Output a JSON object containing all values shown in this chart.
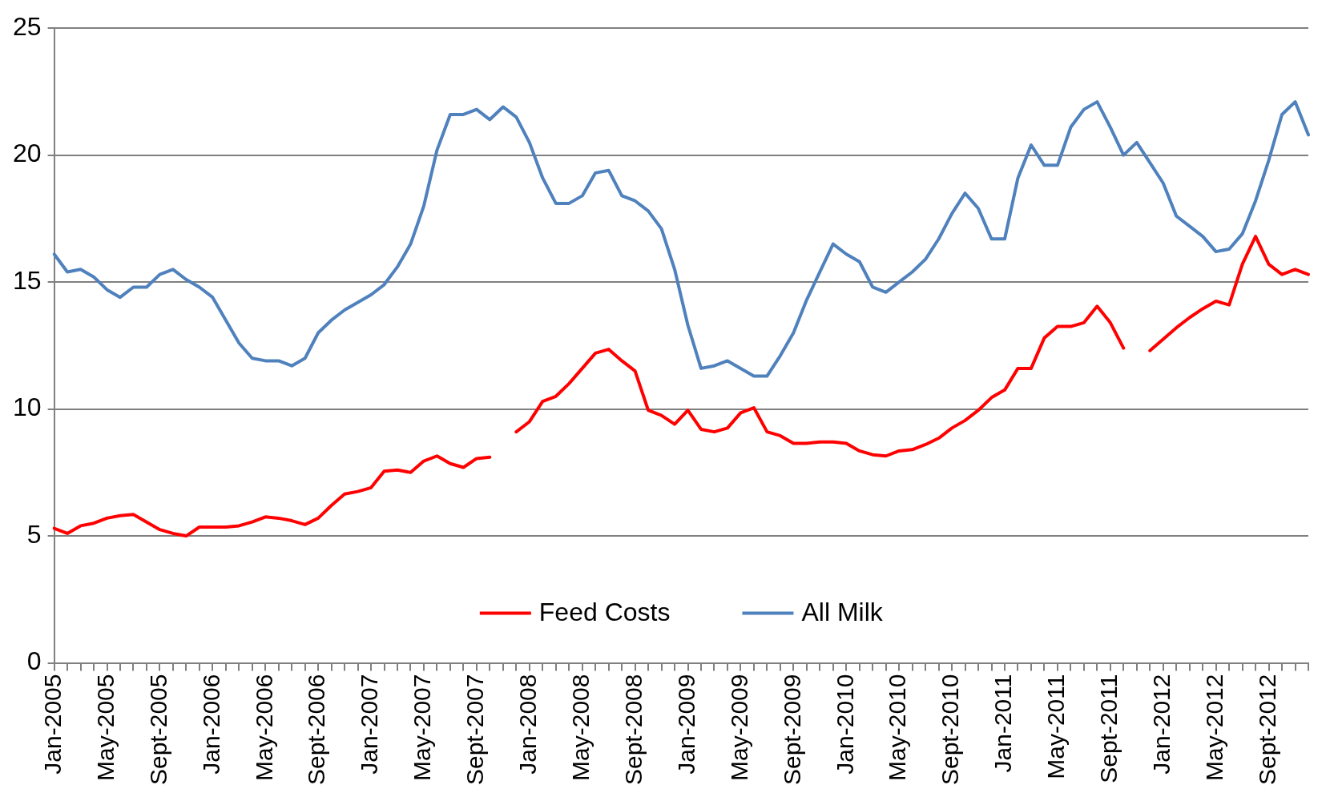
{
  "chart_data": {
    "type": "line",
    "categories": [
      "Jan-2005",
      null,
      null,
      null,
      "May-2005",
      null,
      null,
      null,
      "Sept-2005",
      null,
      null,
      null,
      "Jan-2006",
      null,
      null,
      null,
      "May-2006",
      null,
      null,
      null,
      "Sept-2006",
      null,
      null,
      null,
      "Jan-2007",
      null,
      null,
      null,
      "May-2007",
      null,
      null,
      null,
      "Sept-2007",
      null,
      null,
      null,
      "Jan-2008",
      null,
      null,
      null,
      "May-2008",
      null,
      null,
      null,
      "Sept-2008",
      null,
      null,
      null,
      "Jan-2009",
      null,
      null,
      null,
      "May-2009",
      null,
      null,
      null,
      "Sept-2009",
      null,
      null,
      null,
      "Jan-2010",
      null,
      null,
      null,
      "May-2010",
      null,
      null,
      null,
      "Sept-2010",
      null,
      null,
      null,
      "Jan-2011",
      null,
      null,
      null,
      "May-2011",
      null,
      null,
      null,
      "Sept-2011",
      null,
      null,
      null,
      "Jan-2012",
      null,
      null,
      null,
      "May-2012",
      null,
      null,
      null,
      "Sept-2012",
      null,
      null,
      null
    ],
    "series": [
      {
        "name": "Feed Costs",
        "color": "#ff0000",
        "values": [
          5.3,
          5.1,
          5.4,
          5.5,
          5.7,
          5.8,
          5.85,
          5.55,
          5.25,
          5.1,
          5.0,
          5.35,
          5.35,
          5.35,
          5.4,
          5.55,
          5.75,
          5.7,
          5.6,
          5.45,
          5.7,
          6.2,
          6.65,
          6.75,
          6.9,
          7.55,
          7.6,
          7.5,
          7.95,
          8.15,
          7.85,
          7.7,
          8.05,
          8.1,
          null,
          9.1,
          9.5,
          10.3,
          10.5,
          11.0,
          11.6,
          12.2,
          12.35,
          11.9,
          11.5,
          9.95,
          9.75,
          9.4,
          9.95,
          9.2,
          9.1,
          9.25,
          9.85,
          10.05,
          9.1,
          8.95,
          8.65,
          8.65,
          8.7,
          8.7,
          8.65,
          8.35,
          8.2,
          8.15,
          8.35,
          8.4,
          8.6,
          8.85,
          9.25,
          9.55,
          9.95,
          10.45,
          10.75,
          11.6,
          11.6,
          12.8,
          13.25,
          13.25,
          13.4,
          14.05,
          13.4,
          12.4,
          null,
          12.3,
          12.75,
          13.2,
          13.6,
          13.95,
          14.25,
          14.1,
          15.7,
          16.8,
          15.7,
          15.3,
          15.5,
          15.3
        ]
      },
      {
        "name": "All Milk",
        "color": "#4f81bd",
        "values": [
          16.1,
          15.4,
          15.5,
          15.2,
          14.7,
          14.4,
          14.8,
          14.8,
          15.3,
          15.5,
          15.1,
          14.8,
          14.4,
          13.5,
          12.6,
          12.0,
          11.9,
          11.9,
          11.7,
          12.0,
          13.0,
          13.5,
          13.9,
          14.2,
          14.5,
          14.9,
          15.6,
          16.5,
          18.0,
          20.2,
          21.6,
          21.6,
          21.8,
          21.4,
          21.9,
          21.5,
          20.5,
          19.1,
          18.1,
          18.1,
          18.4,
          19.3,
          19.4,
          18.4,
          18.2,
          17.8,
          17.1,
          15.5,
          13.3,
          11.6,
          11.7,
          11.9,
          11.6,
          11.3,
          11.3,
          12.1,
          13.0,
          14.3,
          15.4,
          16.5,
          16.1,
          15.8,
          14.8,
          14.6,
          15.0,
          15.4,
          15.9,
          16.7,
          17.7,
          18.5,
          17.9,
          16.7,
          16.7,
          19.1,
          20.4,
          19.6,
          19.6,
          21.1,
          21.8,
          22.1,
          21.1,
          20.0,
          20.5,
          19.7,
          18.9,
          17.6,
          17.2,
          16.8,
          16.2,
          16.3,
          16.9,
          18.2,
          19.8,
          21.6,
          22.1,
          20.8
        ]
      }
    ],
    "ylim": [
      0,
      25
    ],
    "yticks": [
      0,
      5,
      10,
      15,
      20,
      25
    ],
    "grid": "y",
    "legend": "bottom",
    "marker": "none",
    "line_style": "solid"
  }
}
